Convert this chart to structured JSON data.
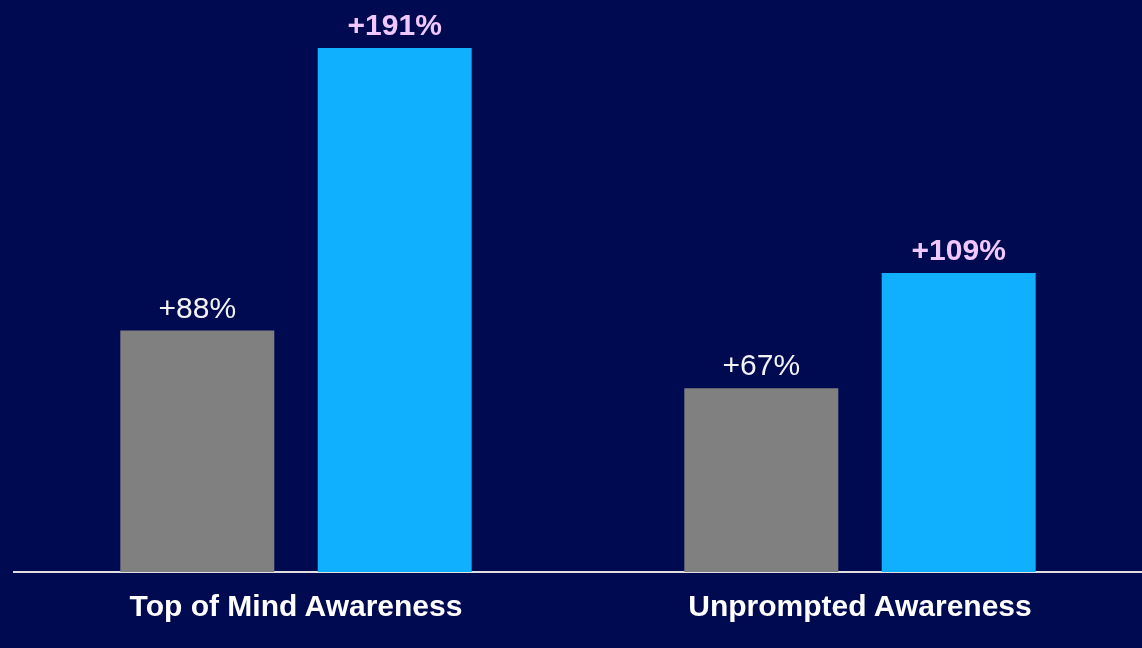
{
  "chart_data": {
    "type": "bar",
    "categories": [
      "Top of Mind Awareness",
      "Unprompted Awareness"
    ],
    "series": [
      {
        "color": "#808080",
        "values": [
          88,
          67
        ],
        "value_labels": [
          "+88%",
          "+67%"
        ]
      },
      {
        "color": "#10b0ff",
        "values": [
          191,
          109
        ],
        "value_labels": [
          "+191%",
          "+109%"
        ]
      }
    ],
    "grid": false,
    "legend": false
  }
}
